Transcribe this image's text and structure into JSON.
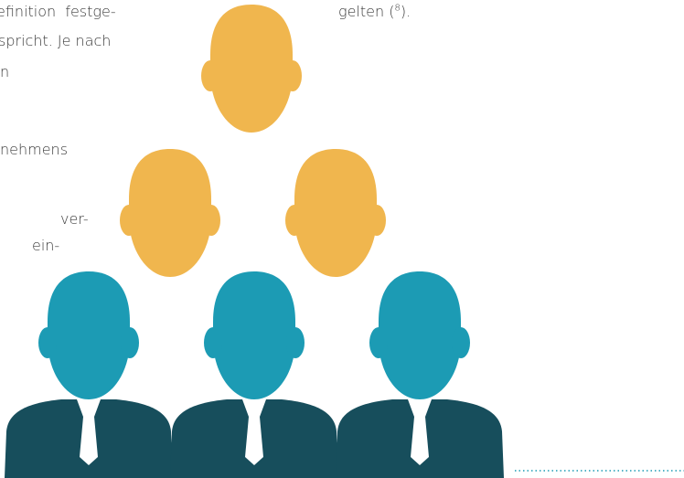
{
  "left_text": [
    "efinition  festge-",
    "spricht. Je nach",
    "n",
    "nehmens",
    "ver-",
    "ein-"
  ],
  "right_text": {
    "before": "gelten (",
    "superscript": "8",
    "after": ")."
  }
}
